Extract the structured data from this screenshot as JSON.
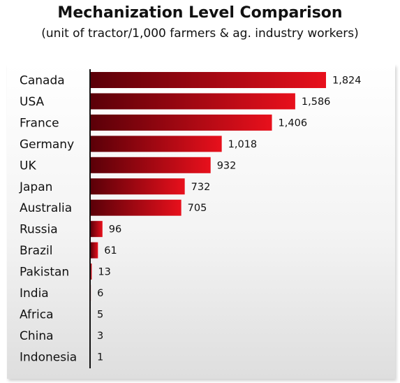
{
  "title": "Mechanization Level Comparison",
  "subtitle": "(unit of tractor/1,000 farmers & ag. industry workers)",
  "chart_data": {
    "type": "bar",
    "orientation": "horizontal",
    "title": "Mechanization Level Comparison",
    "subtitle": "(unit of tractor/1,000 farmers & ag. industry workers)",
    "categories": [
      "Canada",
      "USA",
      "France",
      "Germany",
      "UK",
      "Japan",
      "Australia",
      "Russia",
      "Brazil",
      "Pakistan",
      "India",
      "Africa",
      "China",
      "Indonesia"
    ],
    "values": [
      1824,
      1586,
      1406,
      1018,
      932,
      732,
      705,
      96,
      61,
      13,
      6,
      5,
      3,
      1
    ],
    "value_labels": [
      "1,824",
      "1,586",
      "1,406",
      "1,018",
      "932",
      "732",
      "705",
      "96",
      "61",
      "13",
      "6",
      "5",
      "3",
      "1"
    ],
    "xlim": [
      0,
      1824
    ],
    "xlabel": "",
    "ylabel": "",
    "grid": false,
    "legend": "none",
    "colors": {
      "bar_dark": "#5a0008",
      "bar_light": "#e8101c",
      "axis": "#111111"
    }
  }
}
